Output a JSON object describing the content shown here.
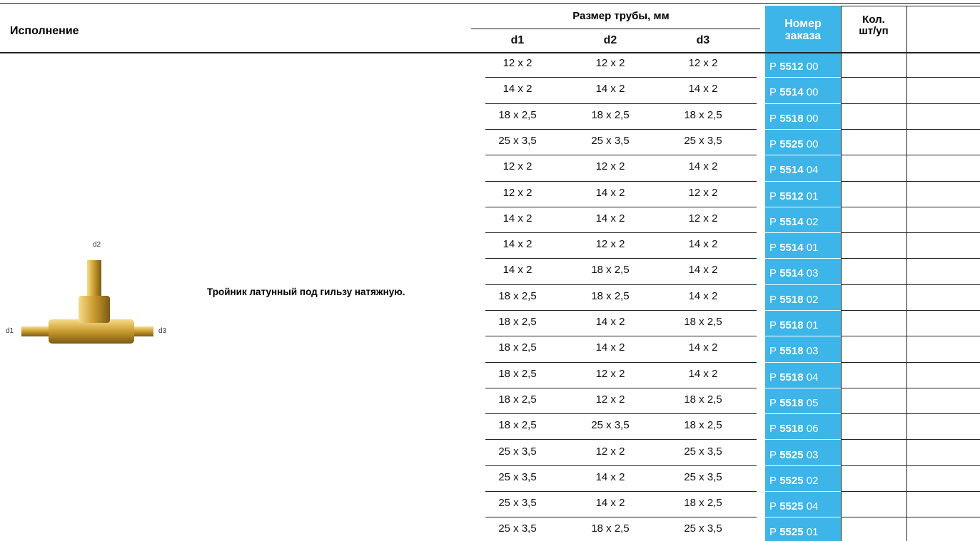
{
  "header": {
    "execution": "Исполнение",
    "pipe_size": "Размер трубы, мм",
    "d_columns": [
      "d1",
      "d2",
      "d3"
    ],
    "order_number": [
      "Номер",
      "заказа"
    ],
    "quantity": [
      "Кол.",
      "шт/уп"
    ]
  },
  "product": {
    "description": "Тройник латунный под гильзу натяжную.",
    "image_labels": [
      "d1",
      "d2",
      "d3"
    ]
  },
  "rows": [
    {
      "sizes": [
        "12 x 2",
        "12 x 2",
        "12 x 2"
      ],
      "order": {
        "prefix": "P",
        "code": "5512",
        "suffix": "00"
      }
    },
    {
      "sizes": [
        "14 x 2",
        "14 x 2",
        "14 x 2"
      ],
      "order": {
        "prefix": "P",
        "code": "5514",
        "suffix": "00"
      }
    },
    {
      "sizes": [
        "18 x 2,5",
        "18 x 2,5",
        "18 x 2,5"
      ],
      "order": {
        "prefix": "P",
        "code": "5518",
        "suffix": "00"
      }
    },
    {
      "sizes": [
        "25 x 3,5",
        "25 x 3,5",
        "25 x 3,5"
      ],
      "order": {
        "prefix": "P",
        "code": "5525",
        "suffix": "00"
      }
    },
    {
      "sizes": [
        "12 x 2",
        "12 x 2",
        "14 x 2"
      ],
      "order": {
        "prefix": "P",
        "code": "5514",
        "suffix": "04"
      }
    },
    {
      "sizes": [
        "12 x 2",
        "14 x 2",
        "12 x 2"
      ],
      "order": {
        "prefix": "P",
        "code": "5512",
        "suffix": "01"
      }
    },
    {
      "sizes": [
        "14 x 2",
        "14 x 2",
        "12 x 2"
      ],
      "order": {
        "prefix": "P",
        "code": "5514",
        "suffix": "02"
      }
    },
    {
      "sizes": [
        "14 x 2",
        "12 x 2",
        "14 x 2"
      ],
      "order": {
        "prefix": "P",
        "code": "5514",
        "suffix": "01"
      }
    },
    {
      "sizes": [
        "14 x 2",
        "18 x 2,5",
        "14 x 2"
      ],
      "order": {
        "prefix": "P",
        "code": "5514",
        "suffix": "03"
      }
    },
    {
      "sizes": [
        "18 x 2,5",
        "18 x 2,5",
        "14 x 2"
      ],
      "order": {
        "prefix": "P",
        "code": "5518",
        "suffix": "02"
      }
    },
    {
      "sizes": [
        "18 x 2,5",
        "14 x 2",
        "18 x 2,5"
      ],
      "order": {
        "prefix": "P",
        "code": "5518",
        "suffix": "01"
      }
    },
    {
      "sizes": [
        "18 x 2,5",
        "14 x 2",
        "14 x 2"
      ],
      "order": {
        "prefix": "P",
        "code": "5518",
        "suffix": "03"
      }
    },
    {
      "sizes": [
        "18 x 2,5",
        "12 x 2",
        "14 x 2"
      ],
      "order": {
        "prefix": "P",
        "code": "5518",
        "suffix": "04"
      }
    },
    {
      "sizes": [
        "18 x 2,5",
        "12 x 2",
        "18 x 2,5"
      ],
      "order": {
        "prefix": "P",
        "code": "5518",
        "suffix": "05"
      }
    },
    {
      "sizes": [
        "18 x 2,5",
        "25 x 3,5",
        "18 x 2,5"
      ],
      "order": {
        "prefix": "P",
        "code": "5518",
        "suffix": "06"
      }
    },
    {
      "sizes": [
        "25 x 3,5",
        "12 x 2",
        "25 x 3,5"
      ],
      "order": {
        "prefix": "P",
        "code": "5525",
        "suffix": "03"
      }
    },
    {
      "sizes": [
        "25 x 3,5",
        "14 x 2",
        "25 x 3,5"
      ],
      "order": {
        "prefix": "P",
        "code": "5525",
        "suffix": "02"
      }
    },
    {
      "sizes": [
        "25 x 3,5",
        "14 x 2",
        "18 x 2,5"
      ],
      "order": {
        "prefix": "P",
        "code": "5525",
        "suffix": "04"
      }
    },
    {
      "sizes": [
        "25 x 3,5",
        "18 x 2,5",
        "25 x 3,5"
      ],
      "order": {
        "prefix": "P",
        "code": "5525",
        "suffix": "01"
      }
    }
  ]
}
